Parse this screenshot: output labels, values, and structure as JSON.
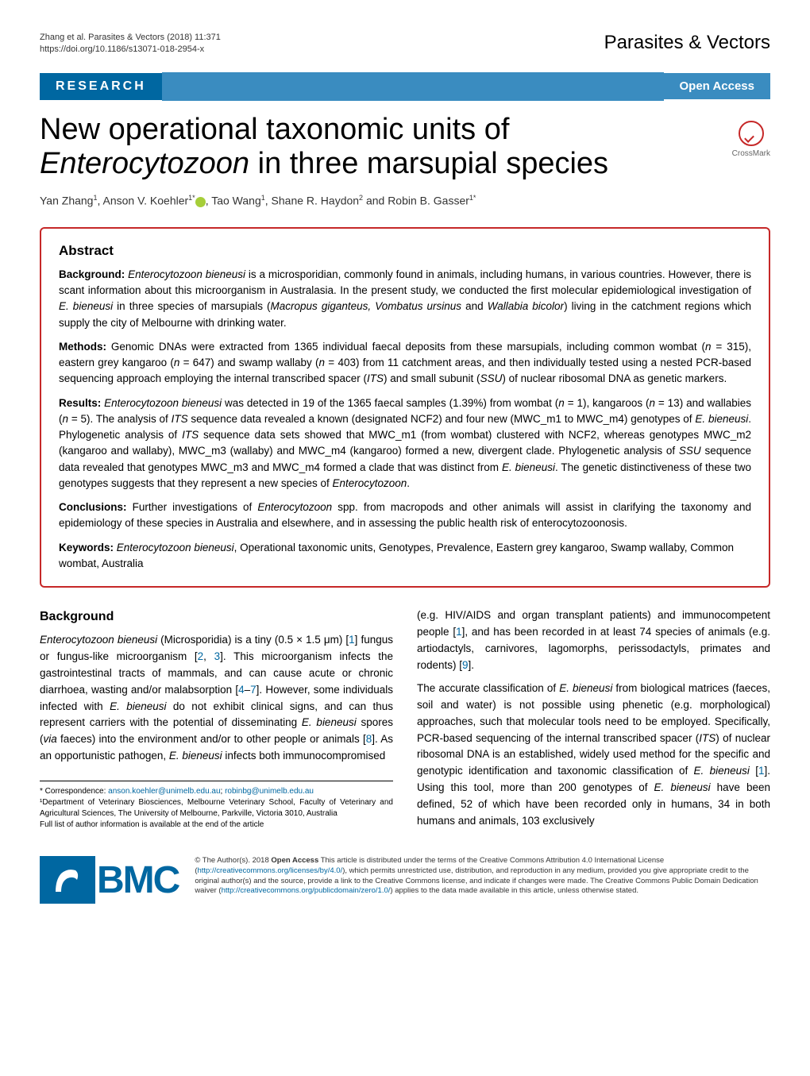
{
  "header": {
    "citation_line1": "Zhang et al. Parasites & Vectors  (2018) 11:371",
    "citation_line2": "https://doi.org/10.1186/s13071-018-2954-x",
    "journal": "Parasites & Vectors"
  },
  "banner": {
    "label": "RESEARCH",
    "open_access": "Open Access"
  },
  "crossmark": {
    "label": "CrossMark"
  },
  "title_html": "New operational taxonomic units of <em>Enterocytozoon</em> in three marsupial species",
  "authors_html": "Yan Zhang<sup>1</sup>, Anson V. Koehler<sup>1*</sup><span class='orcid'></span>, Tao Wang<sup>1</sup>, Shane R. Haydon<sup>2</sup> and Robin B. Gasser<sup>1*</sup>",
  "abstract": {
    "heading": "Abstract",
    "background_html": "<strong>Background:</strong> <em>Enterocytozoon bieneusi</em> is a microsporidian, commonly found in animals, including humans, in various countries. However, there is scant information about this microorganism in Australasia. In the present study, we conducted the first molecular epidemiological investigation of <em>E. bieneusi</em> in three species of marsupials (<em>Macropus giganteus, Vombatus ursinus</em> and <em>Wallabia bicolor</em>) living in the catchment regions which supply the city of Melbourne with drinking water.",
    "methods_html": "<strong>Methods:</strong> Genomic DNAs were extracted from 1365 individual faecal deposits from these marsupials, including common wombat (<em>n</em> = 315), eastern grey kangaroo (<em>n</em> = 647) and swamp wallaby (<em>n</em> = 403) from 11 catchment areas, and then individually tested using a nested PCR-based sequencing approach employing the internal transcribed spacer (<em>ITS</em>) and small subunit (<em>SSU</em>) of nuclear ribosomal DNA as genetic markers.",
    "results_html": "<strong>Results:</strong> <em>Enterocytozoon bieneusi</em> was detected in 19 of the 1365 faecal samples (1.39%) from wombat (<em>n</em> = 1), kangaroos (<em>n</em> = 13) and wallabies (<em>n</em> = 5). The analysis of <em>ITS</em> sequence data revealed a known (designated NCF2) and four new (MWC_m1 to MWC_m4) genotypes of <em>E. bieneusi</em>. Phylogenetic analysis of <em>ITS</em> sequence data sets showed that MWC_m1 (from wombat) clustered with NCF2, whereas genotypes MWC_m2 (kangaroo and wallaby), MWC_m3 (wallaby) and MWC_m4 (kangaroo) formed a new, divergent clade. Phylogenetic analysis of <em>SSU</em> sequence data revealed that genotypes MWC_m3 and MWC_m4 formed a clade that was distinct from <em>E. bieneusi</em>. The genetic distinctiveness of these two genotypes suggests that they represent a new species of <em>Enterocytozoon</em>.",
    "conclusions_html": "<strong>Conclusions:</strong> Further investigations of <em>Enterocytozoon</em> spp. from macropods and other animals will assist in clarifying the taxonomy and epidemiology of these species in Australia and elsewhere, and in assessing the public health risk of enterocytozoonosis.",
    "keywords_html": "<strong>Keywords:</strong> <em>Enterocytozoon bieneusi</em>, Operational taxonomic units, Genotypes, Prevalence, Eastern grey kangaroo, Swamp wallaby, Common wombat, Australia"
  },
  "body": {
    "background_heading": "Background",
    "col1_p1_html": "<em>Enterocytozoon bieneusi</em> (Microsporidia) is a tiny (0.5 × 1.5 μm) [<span class='ref-link'>1</span>] fungus or fungus-like microorganism [<span class='ref-link'>2</span>, <span class='ref-link'>3</span>]. This microorganism infects the gastrointestinal tracts of mammals, and can cause acute or chronic diarrhoea, wasting and/or malabsorption [<span class='ref-link'>4</span>–<span class='ref-link'>7</span>]. However, some individuals infected with <em>E. bieneusi</em> do not exhibit clinical signs, and can thus represent carriers with the potential of disseminating <em>E. bieneusi</em> spores (<em>via</em> faeces) into the environment and/or to other people or animals [<span class='ref-link'>8</span>]. As an opportunistic pathogen, <em>E. bieneusi</em> infects both immunocompromised",
    "col2_p1_html": "(e.g. HIV/AIDS and organ transplant patients) and immunocompetent people [<span class='ref-link'>1</span>], and has been recorded in at least 74 species of animals (e.g. artiodactyls, carnivores, lagomorphs, perissodactyls, primates and rodents) [<span class='ref-link'>9</span>].",
    "col2_p2_html": "The accurate classification of <em>E. bieneusi</em> from biological matrices (faeces, soil and water) is not possible using phenetic (e.g. morphological) approaches, such that molecular tools need to be employed. Specifically, PCR-based sequencing of the internal transcribed spacer (<em>ITS</em>) of nuclear ribosomal DNA is an established, widely used method for the specific and genotypic identification and taxonomic classification of <em>E. bieneusi</em> [<span class='ref-link'>1</span>]. Using this tool, more than 200 genotypes of <em>E. bieneusi</em> have been defined, 52 of which have been recorded only in humans, 34 in both humans and animals, 103 exclusively"
  },
  "correspondence": {
    "line1_html": "* Correspondence: <a>anson.koehler@unimelb.edu.au</a>; <a>robinbg@unimelb.edu.au</a>",
    "line2": "¹Department of Veterinary Biosciences, Melbourne Veterinary School, Faculty of Veterinary and Agricultural Sciences, The University of Melbourne, Parkville, Victoria 3010, Australia",
    "line3": "Full list of author information is available at the end of the article"
  },
  "footer": {
    "bmc": "BMC",
    "license_html": "© The Author(s). 2018 <strong>Open Access</strong> This article is distributed under the terms of the Creative Commons Attribution 4.0 International License (<a>http://creativecommons.org/licenses/by/4.0/</a>), which permits unrestricted use, distribution, and reproduction in any medium, provided you give appropriate credit to the original author(s) and the source, provide a link to the Creative Commons license, and indicate if changes were made. The Creative Commons Public Domain Dedication waiver (<a>http://creativecommons.org/publicdomain/zero/1.0/</a>) applies to the data made available in this article, unless otherwise stated."
  },
  "colors": {
    "banner_dark": "#0067a1",
    "banner_light": "#3a8cc0",
    "accent_red": "#c62828",
    "link": "#0067a1",
    "orcid": "#a6ce39"
  }
}
